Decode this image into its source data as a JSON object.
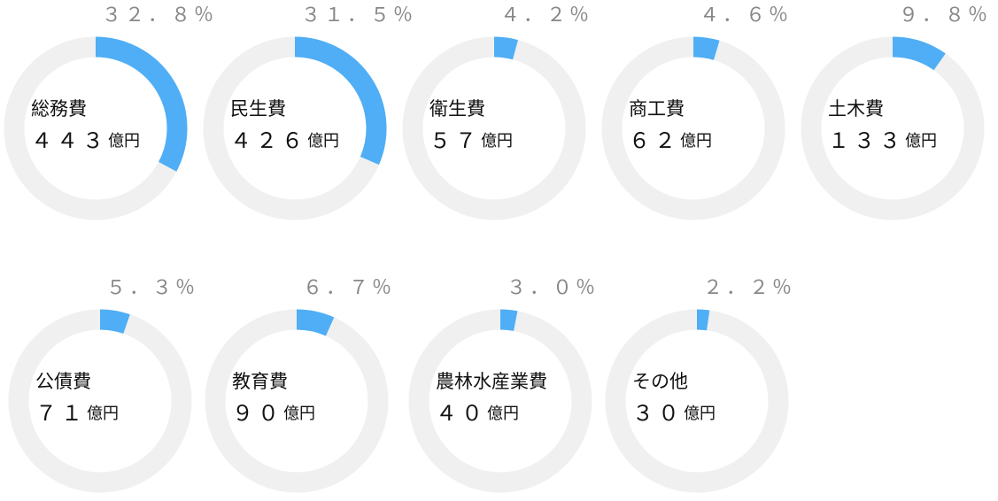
{
  "chart_data": [
    {
      "type": "donut",
      "title": "総務費",
      "values": [
        32.8
      ],
      "value_labels": [
        "３２．８％"
      ],
      "amount": "４４３",
      "unit": "億円",
      "color": "#4faef5",
      "track_color": "#f0f0f0"
    },
    {
      "type": "donut",
      "title": "民生費",
      "values": [
        31.5
      ],
      "value_labels": [
        "３１．５％"
      ],
      "amount": "４２６",
      "unit": "億円",
      "color": "#4faef5",
      "track_color": "#f0f0f0"
    },
    {
      "type": "donut",
      "title": "衛生費",
      "values": [
        4.2
      ],
      "value_labels": [
        "４．２％"
      ],
      "amount": "５７",
      "unit": "億円",
      "color": "#4faef5",
      "track_color": "#f0f0f0"
    },
    {
      "type": "donut",
      "title": "商工費",
      "values": [
        4.6
      ],
      "value_labels": [
        "４．６％"
      ],
      "amount": "６２",
      "unit": "億円",
      "color": "#4faef5",
      "track_color": "#f0f0f0"
    },
    {
      "type": "donut",
      "title": "土木費",
      "values": [
        9.8
      ],
      "value_labels": [
        "９．８％"
      ],
      "amount": "１３３",
      "unit": "億円",
      "color": "#4faef5",
      "track_color": "#f0f0f0"
    },
    {
      "type": "donut",
      "title": "公債費",
      "values": [
        5.3
      ],
      "value_labels": [
        "５．３％"
      ],
      "amount": "７１",
      "unit": "億円",
      "color": "#4faef5",
      "track_color": "#f0f0f0"
    },
    {
      "type": "donut",
      "title": "教育費",
      "values": [
        6.7
      ],
      "value_labels": [
        "６．７％"
      ],
      "amount": "９０",
      "unit": "億円",
      "color": "#4faef5",
      "track_color": "#f0f0f0"
    },
    {
      "type": "donut",
      "title": "農林水産業費",
      "values": [
        3.0
      ],
      "value_labels": [
        "３．０％"
      ],
      "amount": "４０",
      "unit": "億円",
      "color": "#4faef5",
      "track_color": "#f0f0f0"
    },
    {
      "type": "donut",
      "title": "その他",
      "values": [
        2.2
      ],
      "value_labels": [
        "２．２％"
      ],
      "amount": "３０",
      "unit": "億円",
      "color": "#4faef5",
      "track_color": "#f0f0f0"
    }
  ]
}
